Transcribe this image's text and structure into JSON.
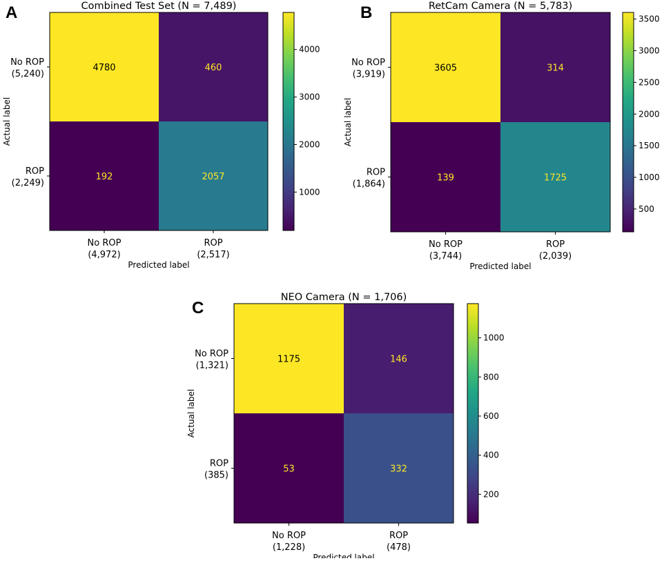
{
  "chart_data": [
    {
      "type": "heatmap",
      "panel": "A",
      "title": "Combined Test Set (N = 7,489)",
      "xlabel": "Predicted label",
      "ylabel": "Actual label",
      "row_labels": [
        [
          "No ROP",
          "(5,240)"
        ],
        [
          "ROP",
          "(2,249)"
        ]
      ],
      "col_labels": [
        [
          "No ROP",
          "(4,972)"
        ],
        [
          "ROP",
          "(2,517)"
        ]
      ],
      "values": [
        [
          4780,
          460
        ],
        [
          192,
          2057
        ]
      ],
      "value_labels": [
        [
          "4780",
          "460"
        ],
        [
          "192",
          "2057"
        ]
      ],
      "colorbar": {
        "min": 192,
        "max": 4780,
        "ticks": [
          1000,
          2000,
          3000,
          4000
        ],
        "tick_labels": [
          "1000",
          "2000",
          "3000",
          "4000"
        ]
      }
    },
    {
      "type": "heatmap",
      "panel": "B",
      "title": "RetCam Camera (N = 5,783)",
      "xlabel": "Predicted label",
      "ylabel": "Actual label",
      "row_labels": [
        [
          "No ROP",
          "(3,919)"
        ],
        [
          "ROP",
          "(1,864)"
        ]
      ],
      "col_labels": [
        [
          "No ROP",
          "(3,744)"
        ],
        [
          "ROP",
          "(2,039)"
        ]
      ],
      "values": [
        [
          3605,
          314
        ],
        [
          139,
          1725
        ]
      ],
      "value_labels": [
        [
          "3605",
          "314"
        ],
        [
          "139",
          "1725"
        ]
      ],
      "colorbar": {
        "min": 139,
        "max": 3605,
        "ticks": [
          500,
          1000,
          1500,
          2000,
          2500,
          3000,
          3500
        ],
        "tick_labels": [
          "500",
          "1000",
          "1500",
          "2000",
          "2500",
          "3000",
          "3500"
        ]
      }
    },
    {
      "type": "heatmap",
      "panel": "C",
      "title": "NEO Camera (N = 1,706)",
      "xlabel": "Predicted label",
      "ylabel": "Actual label",
      "row_labels": [
        [
          "No ROP",
          "(1,321)"
        ],
        [
          "ROP",
          "(385)"
        ]
      ],
      "col_labels": [
        [
          "No ROP",
          "(1,228)"
        ],
        [
          "ROP",
          "(478)"
        ]
      ],
      "values": [
        [
          1175,
          146
        ],
        [
          53,
          332
        ]
      ],
      "value_labels": [
        [
          "1175",
          "146"
        ],
        [
          "53",
          "332"
        ]
      ],
      "colorbar": {
        "min": 53,
        "max": 1175,
        "ticks": [
          200,
          400,
          600,
          800,
          1000
        ],
        "tick_labels": [
          "200",
          "400",
          "600",
          "800",
          "1000"
        ]
      }
    }
  ],
  "colormap": {
    "name": "viridis",
    "low_text_color": "#fde725",
    "high_text_color": "#000000"
  }
}
